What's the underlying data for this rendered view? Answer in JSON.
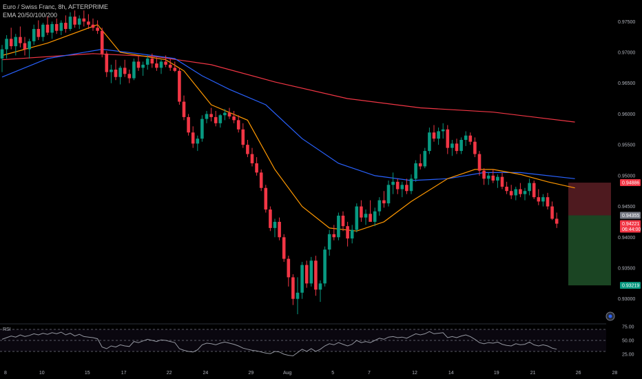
{
  "legend": {
    "line1": "Euro / Swiss Franc, 8h, AFTERPRIME",
    "line2": "EMA 20/50/100/200"
  },
  "colors": {
    "up": "#089981",
    "down": "#f23645",
    "ema20": "#ff9800",
    "ema50": "#2962ff",
    "ema200": "#f23645",
    "rsi": "#9598a1",
    "stop_zone": "#5c1f24",
    "target_zone": "#1e4d27"
  },
  "chart_data": {
    "type": "candlestick",
    "symbol": "EURCHF",
    "timeframe": "8h",
    "ylim": [
      0.9265,
      0.9785
    ],
    "y_ticks": [
      "0.97500",
      "0.97000",
      "0.96500",
      "0.96000",
      "0.95500",
      "0.95000",
      "0.94500",
      "0.94000",
      "0.93500",
      "0.93000"
    ],
    "y_tick_values": [
      0.975,
      0.97,
      0.965,
      0.96,
      0.955,
      0.95,
      0.945,
      0.94,
      0.935,
      0.93
    ],
    "x_tick_labels": [
      "8",
      "10",
      "15",
      "17",
      "22",
      "24",
      "29",
      "Aug",
      "5",
      "7",
      "12",
      "14",
      "19",
      "21",
      "26",
      "28"
    ],
    "x_tick_bars": [
      0,
      8,
      18,
      26,
      36,
      44,
      54,
      62,
      72,
      80,
      90,
      98,
      108,
      116,
      126,
      134
    ],
    "candles": [
      [
        0.969,
        0.9712,
        0.9668,
        0.9705
      ],
      [
        0.9705,
        0.9728,
        0.969,
        0.9722
      ],
      [
        0.9722,
        0.974,
        0.9705,
        0.971
      ],
      [
        0.971,
        0.973,
        0.9695,
        0.9725
      ],
      [
        0.9725,
        0.9742,
        0.9708,
        0.9715
      ],
      [
        0.9715,
        0.9725,
        0.9695,
        0.9705
      ],
      [
        0.9705,
        0.9722,
        0.969,
        0.9718
      ],
      [
        0.9718,
        0.9745,
        0.9712,
        0.9738
      ],
      [
        0.9738,
        0.9752,
        0.972,
        0.9725
      ],
      [
        0.9725,
        0.9748,
        0.9718,
        0.9745
      ],
      [
        0.9745,
        0.9758,
        0.9728,
        0.9732
      ],
      [
        0.9732,
        0.975,
        0.9722,
        0.9746
      ],
      [
        0.9746,
        0.9755,
        0.973,
        0.9735
      ],
      [
        0.9735,
        0.9752,
        0.9728,
        0.9748
      ],
      [
        0.9748,
        0.976,
        0.9732,
        0.9738
      ],
      [
        0.9738,
        0.9765,
        0.9735,
        0.9758
      ],
      [
        0.9758,
        0.9768,
        0.974,
        0.9745
      ],
      [
        0.9745,
        0.976,
        0.9738,
        0.9755
      ],
      [
        0.9755,
        0.9768,
        0.9742,
        0.975
      ],
      [
        0.975,
        0.9762,
        0.9738,
        0.9745
      ],
      [
        0.9745,
        0.9755,
        0.9735,
        0.974
      ],
      [
        0.974,
        0.9752,
        0.973,
        0.9735
      ],
      [
        0.9735,
        0.974,
        0.9692,
        0.9698
      ],
      [
        0.9698,
        0.9702,
        0.966,
        0.9668
      ],
      [
        0.9668,
        0.968,
        0.965,
        0.9672
      ],
      [
        0.9672,
        0.9688,
        0.9655,
        0.966
      ],
      [
        0.966,
        0.9678,
        0.9648,
        0.9675
      ],
      [
        0.9675,
        0.9688,
        0.966,
        0.9665
      ],
      [
        0.9665,
        0.9672,
        0.965,
        0.9658
      ],
      [
        0.9658,
        0.969,
        0.9655,
        0.9685
      ],
      [
        0.9685,
        0.9695,
        0.967,
        0.9675
      ],
      [
        0.9675,
        0.9685,
        0.9662,
        0.968
      ],
      [
        0.968,
        0.9695,
        0.9672,
        0.969
      ],
      [
        0.969,
        0.9698,
        0.9675,
        0.9682
      ],
      [
        0.9682,
        0.9692,
        0.967,
        0.9675
      ],
      [
        0.9675,
        0.9688,
        0.9665,
        0.9685
      ],
      [
        0.9685,
        0.9695,
        0.9676,
        0.968
      ],
      [
        0.968,
        0.969,
        0.967,
        0.9675
      ],
      [
        0.9675,
        0.9685,
        0.9668,
        0.967
      ],
      [
        0.967,
        0.9675,
        0.9615,
        0.962
      ],
      [
        0.962,
        0.963,
        0.959,
        0.9595
      ],
      [
        0.9595,
        0.96,
        0.9565,
        0.957
      ],
      [
        0.957,
        0.958,
        0.9545,
        0.9552
      ],
      [
        0.9552,
        0.9565,
        0.954,
        0.956
      ],
      [
        0.956,
        0.9598,
        0.9555,
        0.9592
      ],
      [
        0.9592,
        0.9605,
        0.9585,
        0.96
      ],
      [
        0.96,
        0.961,
        0.9588,
        0.9595
      ],
      [
        0.9595,
        0.9605,
        0.958,
        0.9585
      ],
      [
        0.9585,
        0.96,
        0.9578,
        0.9598
      ],
      [
        0.9598,
        0.9608,
        0.959,
        0.9602
      ],
      [
        0.9602,
        0.961,
        0.9592,
        0.9596
      ],
      [
        0.9596,
        0.9605,
        0.9585,
        0.959
      ],
      [
        0.959,
        0.9598,
        0.957,
        0.9575
      ],
      [
        0.9575,
        0.9585,
        0.9545,
        0.955
      ],
      [
        0.955,
        0.9558,
        0.953,
        0.9535
      ],
      [
        0.9535,
        0.9545,
        0.9515,
        0.952
      ],
      [
        0.952,
        0.953,
        0.95,
        0.9505
      ],
      [
        0.9505,
        0.951,
        0.9475,
        0.948
      ],
      [
        0.948,
        0.9485,
        0.944,
        0.9445
      ],
      [
        0.9445,
        0.945,
        0.941,
        0.9415
      ],
      [
        0.9415,
        0.943,
        0.94,
        0.9425
      ],
      [
        0.9425,
        0.9432,
        0.9395,
        0.94
      ],
      [
        0.94,
        0.9405,
        0.936,
        0.9365
      ],
      [
        0.9365,
        0.937,
        0.932,
        0.9335
      ],
      [
        0.9335,
        0.934,
        0.929,
        0.93
      ],
      [
        0.93,
        0.9335,
        0.9275,
        0.931
      ],
      [
        0.931,
        0.936,
        0.93,
        0.9355
      ],
      [
        0.9355,
        0.9362,
        0.9318,
        0.9325
      ],
      [
        0.9325,
        0.9368,
        0.932,
        0.9362
      ],
      [
        0.9362,
        0.937,
        0.9305,
        0.9315
      ],
      [
        0.9315,
        0.933,
        0.9295,
        0.9325
      ],
      [
        0.9325,
        0.9385,
        0.932,
        0.938
      ],
      [
        0.938,
        0.9412,
        0.937,
        0.9405
      ],
      [
        0.9405,
        0.942,
        0.9395,
        0.94
      ],
      [
        0.94,
        0.944,
        0.9395,
        0.9435
      ],
      [
        0.9435,
        0.9442,
        0.941,
        0.9418
      ],
      [
        0.9418,
        0.9425,
        0.9385,
        0.9398
      ],
      [
        0.9398,
        0.942,
        0.939,
        0.9412
      ],
      [
        0.9412,
        0.9455,
        0.9408,
        0.945
      ],
      [
        0.945,
        0.946,
        0.9425,
        0.9432
      ],
      [
        0.9432,
        0.9445,
        0.942,
        0.9438
      ],
      [
        0.9438,
        0.946,
        0.9428,
        0.9425
      ],
      [
        0.9425,
        0.9448,
        0.9418,
        0.9442
      ],
      [
        0.9442,
        0.9465,
        0.9435,
        0.946
      ],
      [
        0.946,
        0.9475,
        0.9448,
        0.9455
      ],
      [
        0.9455,
        0.9492,
        0.945,
        0.9485
      ],
      [
        0.9485,
        0.9505,
        0.947,
        0.949
      ],
      [
        0.949,
        0.9495,
        0.947,
        0.9478
      ],
      [
        0.9478,
        0.949,
        0.9465,
        0.9485
      ],
      [
        0.9485,
        0.9495,
        0.947,
        0.9475
      ],
      [
        0.9475,
        0.9502,
        0.947,
        0.9495
      ],
      [
        0.9495,
        0.9525,
        0.949,
        0.952
      ],
      [
        0.952,
        0.9535,
        0.951,
        0.9515
      ],
      [
        0.9515,
        0.9545,
        0.9512,
        0.954
      ],
      [
        0.954,
        0.9578,
        0.9535,
        0.957
      ],
      [
        0.957,
        0.9582,
        0.9555,
        0.956
      ],
      [
        0.956,
        0.9578,
        0.955,
        0.9572
      ],
      [
        0.9572,
        0.9585,
        0.956,
        0.9575
      ],
      [
        0.9575,
        0.9582,
        0.9535,
        0.9545
      ],
      [
        0.9545,
        0.9558,
        0.9532,
        0.9552
      ],
      [
        0.9552,
        0.956,
        0.9535,
        0.954
      ],
      [
        0.954,
        0.9562,
        0.9535,
        0.9558
      ],
      [
        0.9558,
        0.9572,
        0.9548,
        0.9565
      ],
      [
        0.9565,
        0.957,
        0.955,
        0.9555
      ],
      [
        0.9555,
        0.9562,
        0.953,
        0.9535
      ],
      [
        0.9535,
        0.954,
        0.95,
        0.9508
      ],
      [
        0.9508,
        0.9512,
        0.9485,
        0.9495
      ],
      [
        0.9495,
        0.9505,
        0.9485,
        0.95
      ],
      [
        0.95,
        0.951,
        0.9488,
        0.9492
      ],
      [
        0.9492,
        0.9502,
        0.948,
        0.9498
      ],
      [
        0.9498,
        0.9505,
        0.9478,
        0.9482
      ],
      [
        0.9482,
        0.949,
        0.947,
        0.9475
      ],
      [
        0.9475,
        0.9485,
        0.9462,
        0.9468
      ],
      [
        0.9468,
        0.9482,
        0.946,
        0.9478
      ],
      [
        0.9478,
        0.9488,
        0.9465,
        0.947
      ],
      [
        0.947,
        0.948,
        0.946,
        0.9475
      ],
      [
        0.9475,
        0.9495,
        0.9468,
        0.9488
      ],
      [
        0.9488,
        0.9492,
        0.9462,
        0.9465
      ],
      [
        0.9465,
        0.9478,
        0.9452,
        0.9458
      ],
      [
        0.9458,
        0.947,
        0.945,
        0.9465
      ],
      [
        0.9465,
        0.9472,
        0.9445,
        0.945
      ],
      [
        0.945,
        0.9458,
        0.9428,
        0.943
      ],
      [
        0.943,
        0.944,
        0.9415,
        0.9422
      ]
    ],
    "ema20": [
      [
        0,
        0.9695
      ],
      [
        10,
        0.9715
      ],
      [
        21,
        0.9745
      ],
      [
        26,
        0.97
      ],
      [
        36,
        0.9688
      ],
      [
        40,
        0.967
      ],
      [
        46,
        0.9615
      ],
      [
        54,
        0.959
      ],
      [
        60,
        0.951
      ],
      [
        66,
        0.945
      ],
      [
        72,
        0.9415
      ],
      [
        78,
        0.941
      ],
      [
        84,
        0.9425
      ],
      [
        90,
        0.9458
      ],
      [
        98,
        0.9495
      ],
      [
        104,
        0.951
      ],
      [
        108,
        0.951
      ],
      [
        114,
        0.9502
      ],
      [
        120,
        0.949
      ],
      [
        126,
        0.948
      ]
    ],
    "ema50": [
      [
        0,
        0.966
      ],
      [
        10,
        0.969
      ],
      [
        22,
        0.9705
      ],
      [
        30,
        0.9698
      ],
      [
        38,
        0.969
      ],
      [
        44,
        0.9662
      ],
      [
        50,
        0.964
      ],
      [
        58,
        0.9615
      ],
      [
        66,
        0.956
      ],
      [
        74,
        0.952
      ],
      [
        82,
        0.95
      ],
      [
        90,
        0.9492
      ],
      [
        98,
        0.9495
      ],
      [
        106,
        0.9505
      ],
      [
        114,
        0.9505
      ],
      [
        126,
        0.9495
      ]
    ],
    "ema200": [
      [
        0,
        0.9688
      ],
      [
        20,
        0.9698
      ],
      [
        34,
        0.9693
      ],
      [
        46,
        0.968
      ],
      [
        60,
        0.9652
      ],
      [
        76,
        0.9625
      ],
      [
        92,
        0.961
      ],
      [
        108,
        0.9603
      ],
      [
        126,
        0.9587
      ]
    ],
    "price_labels": [
      {
        "value": 0.94886,
        "text": "0.94886",
        "color": "#f23645"
      },
      {
        "value": 0.94355,
        "text": "0.94355",
        "color": "#787b86"
      },
      {
        "value": 0.94221,
        "text": "0.94221",
        "color": "#f23645",
        "subtext": "06:44:00"
      },
      {
        "value": 0.93219,
        "text": "0.93219",
        "color": "#089981"
      }
    ],
    "position": {
      "entry": 0.94355,
      "stop": 0.94886,
      "target": 0.93219,
      "start_bar": 125
    },
    "rsi": {
      "label": "RSI",
      "levels": [
        70,
        50,
        30
      ],
      "tick_labels": [
        "75.00",
        "50.00",
        "25.00"
      ],
      "tick_values": [
        75,
        50,
        25
      ],
      "values": [
        52,
        55,
        58,
        56,
        60,
        57,
        59,
        62,
        60,
        63,
        61,
        64,
        62,
        65,
        60,
        63,
        58,
        61,
        57,
        56,
        55,
        53,
        38,
        35,
        40,
        38,
        42,
        40,
        39,
        48,
        46,
        49,
        52,
        50,
        48,
        51,
        50,
        48,
        46,
        35,
        32,
        30,
        29,
        33,
        42,
        45,
        44,
        42,
        45,
        47,
        45,
        43,
        40,
        36,
        34,
        32,
        31,
        29,
        27,
        26,
        30,
        29,
        25,
        23,
        22,
        28,
        34,
        30,
        35,
        30,
        34,
        40,
        44,
        42,
        46,
        43,
        40,
        43,
        50,
        46,
        48,
        46,
        50,
        54,
        52,
        56,
        57,
        55,
        56,
        54,
        58,
        62,
        60,
        62,
        66,
        62,
        63,
        64,
        55,
        57,
        55,
        58,
        60,
        57,
        52,
        46,
        44,
        46,
        45,
        47,
        43,
        41,
        40,
        44,
        42,
        43,
        47,
        42,
        40,
        42,
        40,
        36,
        34
      ]
    }
  }
}
